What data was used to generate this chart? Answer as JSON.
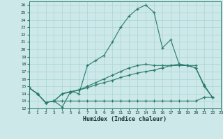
{
  "xlabel": "Humidex (Indice chaleur)",
  "bg_color": "#cce8e8",
  "grid_color": "#aad4d4",
  "line_color": "#2a7a6a",
  "xlim": [
    0,
    23
  ],
  "ylim": [
    12,
    26.5
  ],
  "xticks": [
    0,
    1,
    2,
    3,
    4,
    5,
    6,
    7,
    8,
    9,
    10,
    11,
    12,
    13,
    14,
    15,
    16,
    17,
    18,
    19,
    20,
    21,
    22,
    23
  ],
  "yticks": [
    12,
    13,
    14,
    15,
    16,
    17,
    18,
    19,
    20,
    21,
    22,
    23,
    24,
    25,
    26
  ],
  "series": [
    {
      "x": [
        0,
        1,
        2,
        3,
        4,
        5,
        6,
        7,
        8,
        9,
        10,
        11,
        12,
        13,
        14,
        15,
        16,
        17,
        18,
        19,
        20
      ],
      "y": [
        14.8,
        14.0,
        12.8,
        13.0,
        12.2,
        14.3,
        14.0,
        17.8,
        18.5,
        19.2,
        21.0,
        23.0,
        24.5,
        25.5,
        26.0,
        25.0,
        20.2,
        21.3,
        18.0,
        17.8,
        17.8
      ]
    },
    {
      "x": [
        0,
        1,
        2,
        3,
        4,
        5,
        6,
        7,
        8,
        9,
        10,
        11,
        12,
        13,
        14,
        15,
        16,
        17,
        18,
        19,
        20,
        21,
        22
      ],
      "y": [
        14.8,
        14.0,
        12.8,
        13.0,
        13.0,
        13.0,
        13.0,
        13.0,
        13.0,
        13.0,
        13.0,
        13.0,
        13.0,
        13.0,
        13.0,
        13.0,
        13.0,
        13.0,
        13.0,
        13.0,
        13.0,
        13.5,
        13.5
      ]
    },
    {
      "x": [
        0,
        1,
        2,
        3,
        4,
        5,
        6,
        7,
        8,
        9,
        10,
        11,
        12,
        13,
        14,
        15,
        16,
        17,
        18,
        19,
        20,
        21,
        22
      ],
      "y": [
        14.8,
        14.0,
        12.8,
        13.0,
        14.0,
        14.2,
        14.5,
        14.8,
        15.2,
        15.5,
        15.8,
        16.2,
        16.5,
        16.8,
        17.0,
        17.2,
        17.5,
        17.8,
        17.8,
        17.8,
        17.5,
        15.0,
        13.5
      ]
    },
    {
      "x": [
        0,
        1,
        2,
        3,
        4,
        5,
        6,
        7,
        8,
        9,
        10,
        11,
        12,
        13,
        14,
        15,
        16,
        17,
        18,
        19,
        20,
        21,
        22
      ],
      "y": [
        14.8,
        14.0,
        12.8,
        13.0,
        14.0,
        14.3,
        14.5,
        15.0,
        15.5,
        16.0,
        16.5,
        17.0,
        17.5,
        17.8,
        18.0,
        17.8,
        17.8,
        17.8,
        18.0,
        17.8,
        17.5,
        15.2,
        13.5
      ]
    }
  ]
}
